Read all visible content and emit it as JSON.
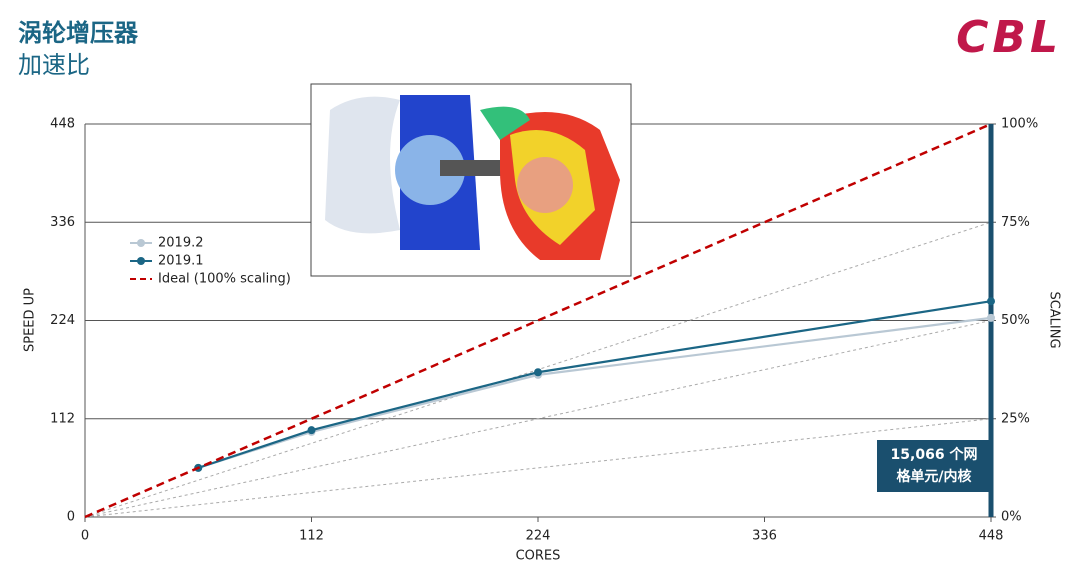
{
  "chart_data": {
    "type": "line",
    "title": "涡轮增压器",
    "subtitle": "加速比",
    "logo": "CBL",
    "xlabel": "CORES",
    "ylabel": "SPEED UP",
    "y2label": "SCALING",
    "xlim": [
      0,
      448
    ],
    "xticks": [
      0,
      112,
      224,
      336,
      448
    ],
    "ylim": [
      0,
      448
    ],
    "yticks": [
      0,
      112,
      224,
      336,
      448
    ],
    "y2lim": [
      0,
      100
    ],
    "y2ticks": [
      {
        "value": 0,
        "label": "0%"
      },
      {
        "value": 25,
        "label": "25%"
      },
      {
        "value": 50,
        "label": "50%"
      },
      {
        "value": 75,
        "label": "75%"
      },
      {
        "value": 100,
        "label": "100%"
      }
    ],
    "grid": true,
    "legend": "upper left",
    "series": [
      {
        "name": "2019.2",
        "color": "#b9c8d4",
        "x": [
          56,
          112,
          224,
          448
        ],
        "values": [
          56,
          97,
          162,
          227
        ],
        "markers": true
      },
      {
        "name": "2019.1",
        "color": "#1b6685",
        "x": [
          56,
          112,
          224,
          448
        ],
        "values": [
          56,
          99,
          165,
          246
        ],
        "markers": true
      },
      {
        "name": "Ideal (100% scaling)",
        "color": "#c00000",
        "x": [
          0,
          448
        ],
        "values": [
          0,
          448
        ],
        "dashed": true
      }
    ],
    "annotation": [
      "15,066 个网",
      "格单元/内核"
    ]
  }
}
